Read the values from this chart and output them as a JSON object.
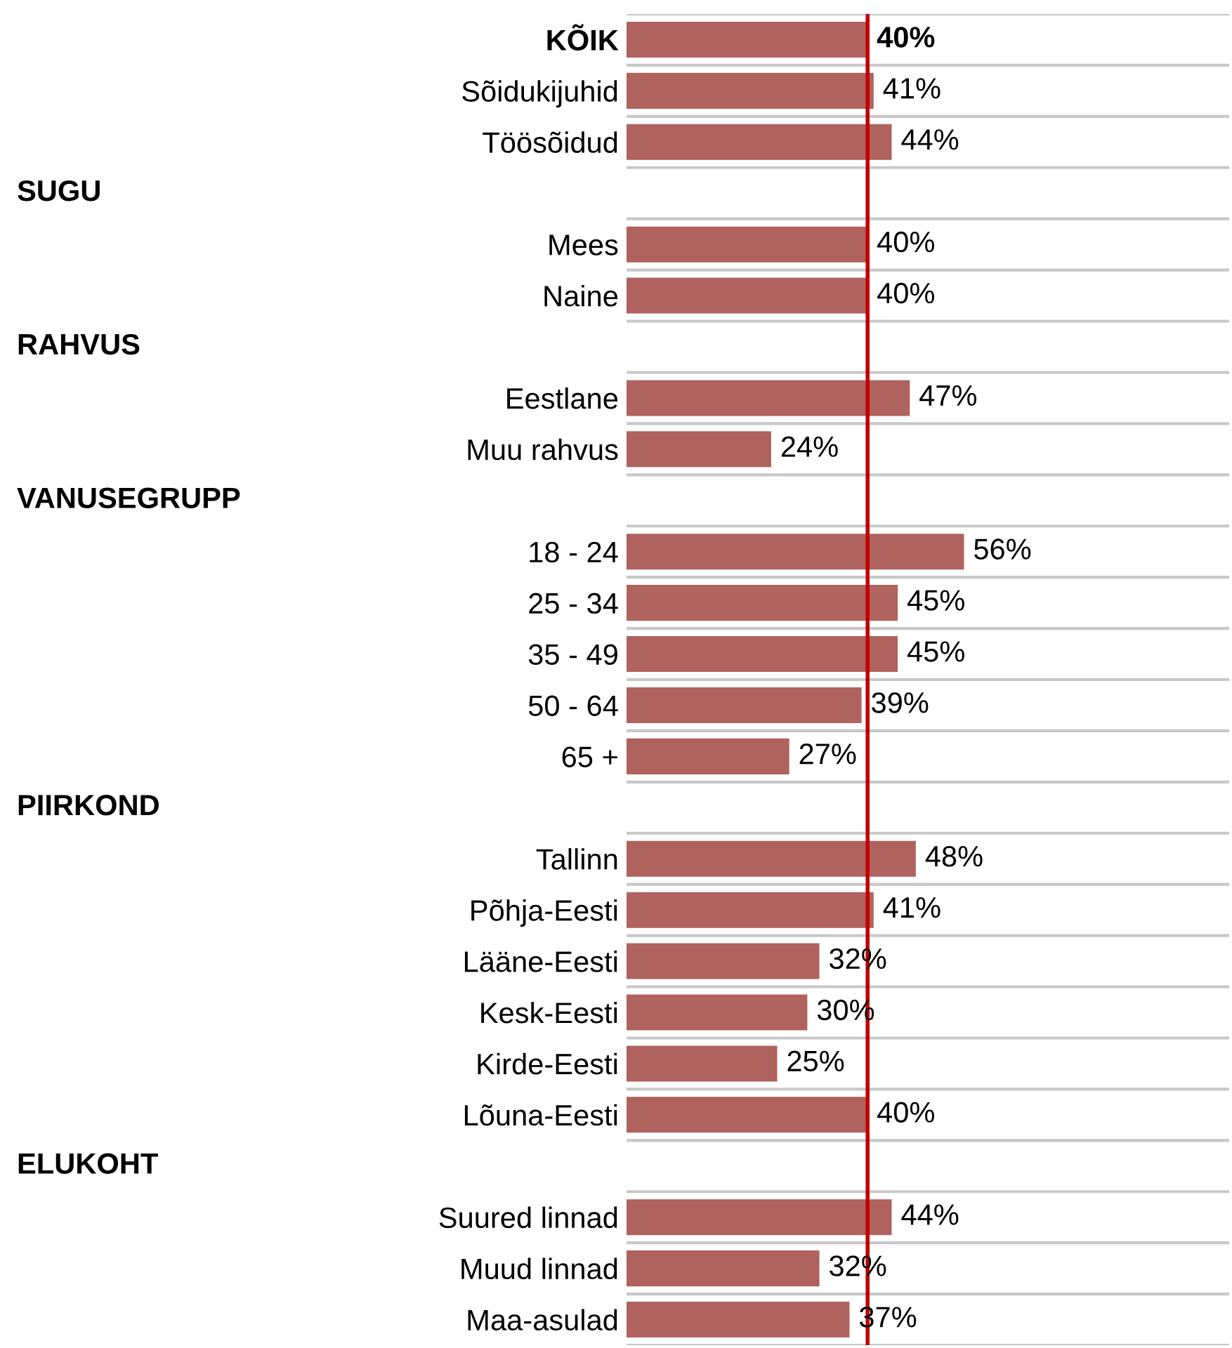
{
  "chart_data": {
    "type": "bar",
    "orientation": "horizontal",
    "categories": [
      "KÕIK",
      "Sõidukijuhid",
      "Töösõidud",
      null,
      "Mees",
      "Naine",
      null,
      "Eestlane",
      "Muu rahvus",
      null,
      "18 - 24",
      "25 - 34",
      "35 - 49",
      "50 - 64",
      "65 +",
      null,
      "Tallinn",
      "Põhja-Eesti",
      "Lääne-Eesti",
      "Kesk-Eesti",
      "Kirde-Eesti",
      "Lõuna-Eesti",
      null,
      "Suured linnad",
      "Muud linnad",
      "Maa-asulad"
    ],
    "annotations": [
      "SUGU",
      "RAHVUS",
      "VANUSEGRUPP",
      "PIIRKOND",
      "ELUKOHT"
    ],
    "values": [
      40,
      41,
      44,
      null,
      40,
      40,
      null,
      47,
      24,
      null,
      56,
      45,
      45,
      39,
      27,
      null,
      48,
      41,
      32,
      30,
      25,
      40,
      null,
      44,
      32,
      37
    ],
    "value_labels": [
      "40%",
      "41%",
      "44%",
      null,
      "40%",
      "40%",
      null,
      "47%",
      "24%",
      null,
      "56%",
      "45%",
      "45%",
      "39%",
      "27%",
      null,
      "48%",
      "41%",
      "32%",
      "30%",
      "25%",
      "40%",
      null,
      "44%",
      "32%",
      "37%"
    ],
    "color": "#b0625e",
    "xlim": [
      0,
      100
    ],
    "tick_labels": "y",
    "grid": "y",
    "legend": false,
    "ref_lines": [
      {
        "axis": "x",
        "value": 40,
        "color": "#c00000"
      }
    ]
  }
}
